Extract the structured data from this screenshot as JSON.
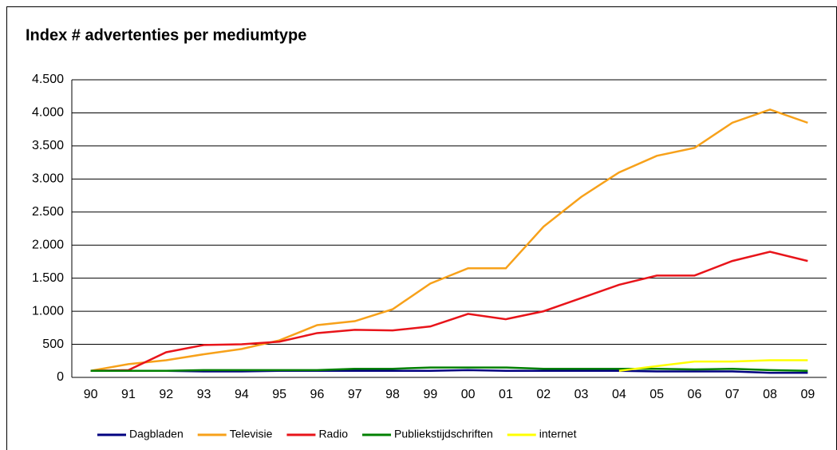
{
  "chart_data": {
    "type": "line",
    "title": "Index # advertenties per mediumtype",
    "categories": [
      "90",
      "91",
      "92",
      "93",
      "94",
      "95",
      "96",
      "97",
      "98",
      "99",
      "00",
      "01",
      "02",
      "03",
      "04",
      "05",
      "06",
      "07",
      "08",
      "09"
    ],
    "series": [
      {
        "name": "Dagbladen",
        "color": "#000080",
        "values": [
          100,
          100,
          100,
          90,
          90,
          100,
          100,
          100,
          100,
          100,
          110,
          100,
          100,
          100,
          100,
          90,
          90,
          90,
          70,
          70
        ]
      },
      {
        "name": "Televisie",
        "color": "#f7a11a",
        "values": [
          100,
          200,
          260,
          350,
          430,
          560,
          790,
          850,
          1030,
          1420,
          1650,
          1650,
          2280,
          2730,
          3100,
          3350,
          3470,
          3850,
          4050,
          3850
        ]
      },
      {
        "name": "Radio",
        "color": "#e8141a",
        "values": [
          100,
          110,
          380,
          490,
          500,
          540,
          670,
          720,
          710,
          770,
          960,
          880,
          1000,
          1200,
          1400,
          1540,
          1540,
          1760,
          1900,
          1760
        ]
      },
      {
        "name": "Publiekstijdschriften",
        "color": "#008000",
        "values": [
          100,
          100,
          100,
          110,
          110,
          110,
          110,
          130,
          130,
          150,
          150,
          150,
          130,
          130,
          130,
          130,
          120,
          130,
          110,
          100
        ]
      },
      {
        "name": "internet",
        "color": "#ffff00",
        "values": [
          null,
          null,
          null,
          null,
          null,
          null,
          null,
          null,
          null,
          null,
          null,
          null,
          null,
          null,
          100,
          170,
          240,
          240,
          260,
          260
        ]
      }
    ],
    "ylim": [
      0,
      4500
    ],
    "yticks": [
      0,
      500,
      {
        "value": 1000,
        "label": "1.000"
      },
      {
        "value": 1500,
        "label": "1.500"
      },
      {
        "value": 2000,
        "label": "2.000"
      },
      {
        "value": 2500,
        "label": "2.500"
      },
      {
        "value": 3000,
        "label": "3.000"
      },
      {
        "value": 3500,
        "label": "3.500"
      },
      {
        "value": 4000,
        "label": "4.000"
      },
      {
        "value": 4500,
        "label": "4.500"
      }
    ],
    "grid": true,
    "legend": "bottom"
  }
}
